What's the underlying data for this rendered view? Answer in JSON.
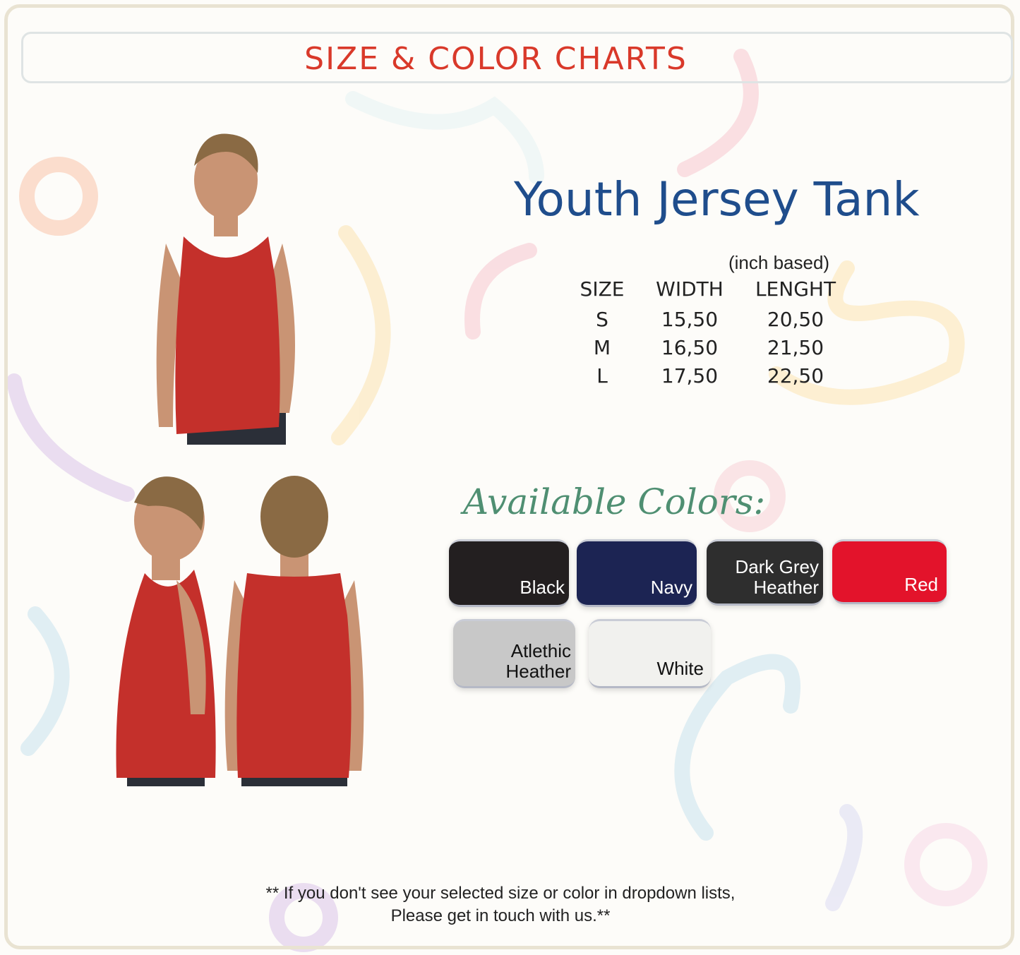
{
  "header": {
    "title": "SIZE & COLOR CHARTS"
  },
  "product": {
    "title": "Youth Jersey Tank"
  },
  "size_chart": {
    "unit_note": "(inch based)",
    "columns": [
      "SIZE",
      "WIDTH",
      "LENGHT"
    ],
    "rows": [
      [
        "S",
        "15,50",
        "20,50"
      ],
      [
        "M",
        "16,50",
        "21,50"
      ],
      [
        "L",
        "17,50",
        "22,50"
      ]
    ]
  },
  "colors": {
    "heading": "Available Colors:",
    "swatches": [
      {
        "label": "Black",
        "color": "#231f20",
        "text_color": "#ffffff"
      },
      {
        "label": "Navy",
        "color": "#1c2453",
        "text_color": "#ffffff"
      },
      {
        "label": "Dark Grey Heather",
        "color": "#2e2e2e",
        "text_color": "#ffffff"
      },
      {
        "label": "Red",
        "color": "#e3132b",
        "text_color": "#ffffff"
      },
      {
        "label": "Atlethic Heather",
        "color": "#c8c8c8",
        "text_color": "#111111"
      },
      {
        "label": "White",
        "color": "#f1f1ee",
        "text_color": "#111111"
      }
    ]
  },
  "footer": {
    "line1": "** If you don't see your selected size or color in dropdown lists,",
    "line2": "Please get in touch with us.**"
  }
}
